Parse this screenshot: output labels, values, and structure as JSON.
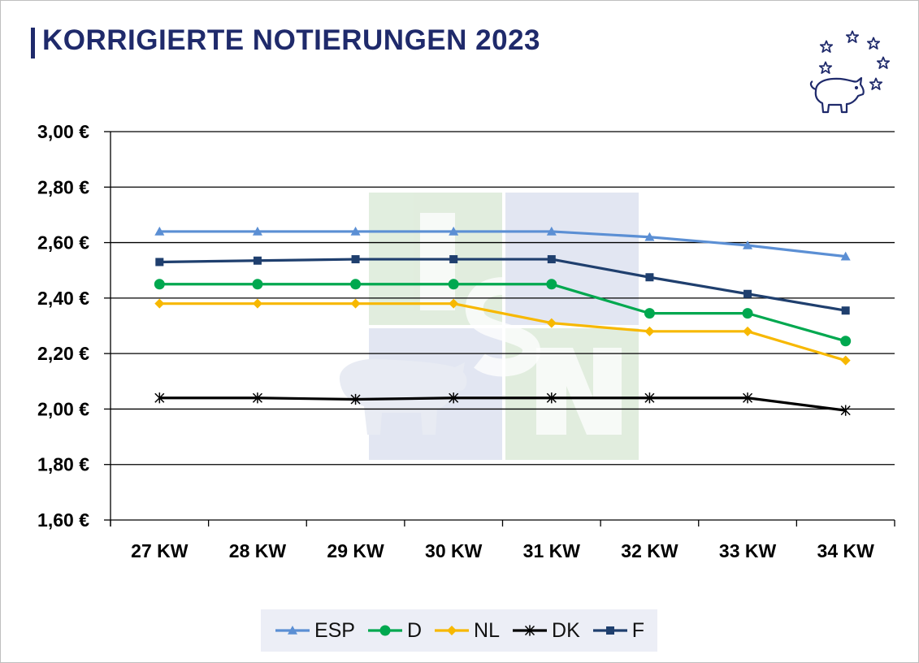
{
  "title": "KORRIGIERTE NOTIERUNGEN 2023",
  "logo": {
    "icon": "pig-stars-logo-icon"
  },
  "chart_data": {
    "type": "line",
    "categories": [
      "27 KW",
      "28 KW",
      "29 KW",
      "30 KW",
      "31 KW",
      "32 KW",
      "33 KW",
      "34 KW"
    ],
    "ylim": [
      1.6,
      3.0
    ],
    "yticks": [
      1.6,
      1.8,
      2.0,
      2.2,
      2.4,
      2.6,
      2.8,
      3.0
    ],
    "ytick_labels": [
      "1,60 €",
      "1,80 €",
      "2,00 €",
      "2,20 €",
      "2,40 €",
      "2,60 €",
      "2,80 €",
      "3,00 €"
    ],
    "grid": true,
    "legend_position": "bottom",
    "series": [
      {
        "name": "ESP",
        "color": "#5b8fd4",
        "marker": "triangle",
        "values": [
          2.64,
          2.64,
          2.64,
          2.64,
          2.64,
          2.62,
          2.59,
          2.55
        ]
      },
      {
        "name": "D",
        "color": "#00a84f",
        "marker": "circle",
        "values": [
          2.45,
          2.45,
          2.45,
          2.45,
          2.45,
          2.345,
          2.345,
          2.245
        ]
      },
      {
        "name": "NL",
        "color": "#f7b800",
        "marker": "diamond",
        "values": [
          2.38,
          2.38,
          2.38,
          2.38,
          2.31,
          2.28,
          2.28,
          2.175
        ]
      },
      {
        "name": "DK",
        "color": "#000000",
        "marker": "star",
        "values": [
          2.04,
          2.04,
          2.035,
          2.04,
          2.04,
          2.04,
          2.04,
          1.995
        ]
      },
      {
        "name": "F",
        "color": "#1f3f6e",
        "marker": "square",
        "values": [
          2.53,
          2.535,
          2.54,
          2.54,
          2.54,
          2.475,
          2.415,
          2.355
        ]
      }
    ]
  }
}
